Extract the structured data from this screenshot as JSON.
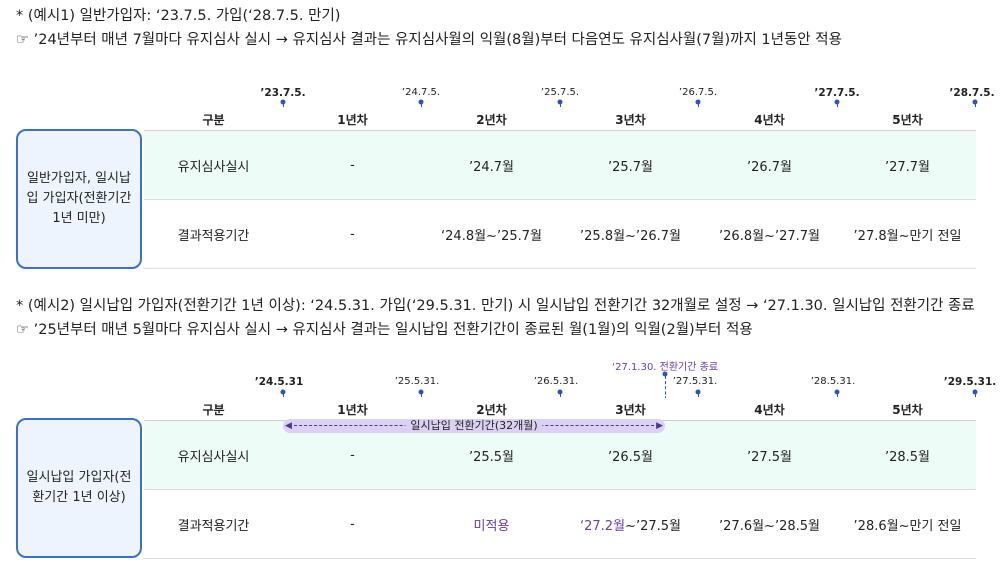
{
  "example1": {
    "title": "* (예시1) 일반가입자: ‘23.7.5. 가입(‘28.7.5. 만기)",
    "note": "☞ ’24년부터 매년 7월마다 유지심사 실시 → 유지심사 결과는 유지심사월의 익월(8월)부터 다음연도 유지심사월(7월)까지 1년동안 적용",
    "dates": [
      "’23.7.5.",
      "’24.7.5.",
      "’25.7.5.",
      "’26.7.5.",
      "’27.7.5.",
      "’28.7.5."
    ],
    "side_label": "일반가입자, 일시납입 가입자(전환기간 1년 미만)",
    "headers": [
      "구분",
      "1년차",
      "2년차",
      "3년차",
      "4년차",
      "5년차"
    ],
    "rows": [
      [
        "유지심사실시",
        "-",
        "’24.7월",
        "’25.7월",
        "’26.7월",
        "’27.7월"
      ],
      [
        "결과적용기간",
        "-",
        "‘24.8월~’25.7월",
        "’25.8월~’26.7월",
        "’26.8월~’27.7월",
        "’27.8월~만기 전일"
      ]
    ]
  },
  "example2": {
    "title": "* (예시2) 일시납입 가입자(전환기간 1년 이상): ‘24.5.31. 가입(‘29.5.31. 만기) 시 일시납입 전환기간 32개월로 설정 → ‘27.1.30. 일시납입 전환기간 종료",
    "note": "☞ ’25년부터 매년 5월마다 유지심사 실시 → 유지심사 결과는 일시납입 전환기간이 종료된 월(1월)의 익월(2월)부터 적용",
    "dates": [
      "’24.5.31",
      "’25.5.31.",
      "’26.5.31.",
      "’27.5.31.",
      "’28.5.31.",
      "’29.5.31."
    ],
    "end_note": "‘27.1.30. 전환기간 종료",
    "period_label": "일시납입 전환기간(32개월)",
    "period_left_arrow": "◀",
    "period_right_arrow": "▶",
    "side_label": "일시납입 가입자(전환기간 1년 이상)",
    "headers": [
      "구분",
      "1년차",
      "2년차",
      "3년차",
      "4년차",
      "5년차"
    ],
    "rows": [
      [
        "유지심사실시",
        "-",
        "’25.5월",
        "’26.5월",
        "’27.5월",
        "’28.5월"
      ],
      [
        "결과적용기간",
        "-",
        "미적용",
        "‘27.2월~’27.5월",
        "’27.6월~’28.5월",
        "’28.6월~만기 전일"
      ]
    ],
    "r2c3_part1": "‘27.2월",
    "r2c3_part2": "~’27.5월"
  },
  "colors": {
    "accent_blue": "#3a73c6",
    "row_highlight": "#eefcf8",
    "purple": "#6a3fa0",
    "period_fill": "#dcd0f5"
  }
}
